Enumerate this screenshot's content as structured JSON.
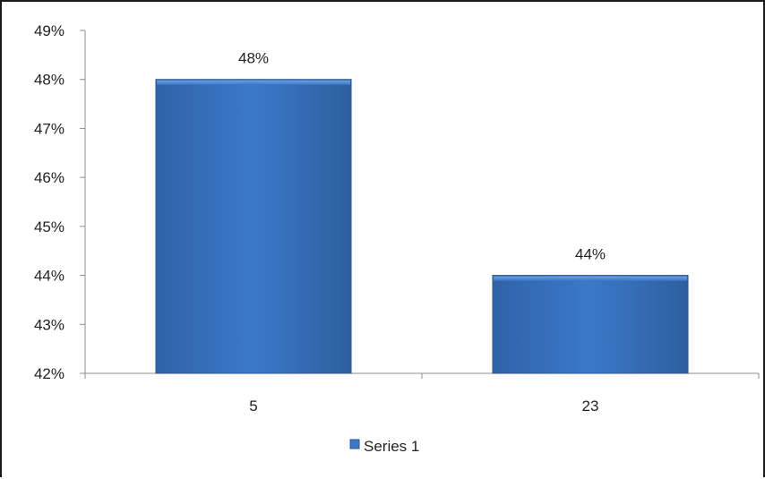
{
  "chart_data": {
    "type": "bar",
    "categories": [
      "5",
      "23"
    ],
    "series": [
      {
        "name": "Series 1",
        "values": [
          48,
          44
        ],
        "color": "#3b78c8"
      }
    ],
    "data_labels": [
      "48%",
      "44%"
    ],
    "title": "",
    "xlabel": "",
    "ylabel": "",
    "ylim": [
      42,
      49
    ],
    "y_ticks": [
      "42%",
      "43%",
      "44%",
      "45%",
      "46%",
      "47%",
      "48%",
      "49%"
    ],
    "grid": false,
    "legend_position": "bottom"
  }
}
